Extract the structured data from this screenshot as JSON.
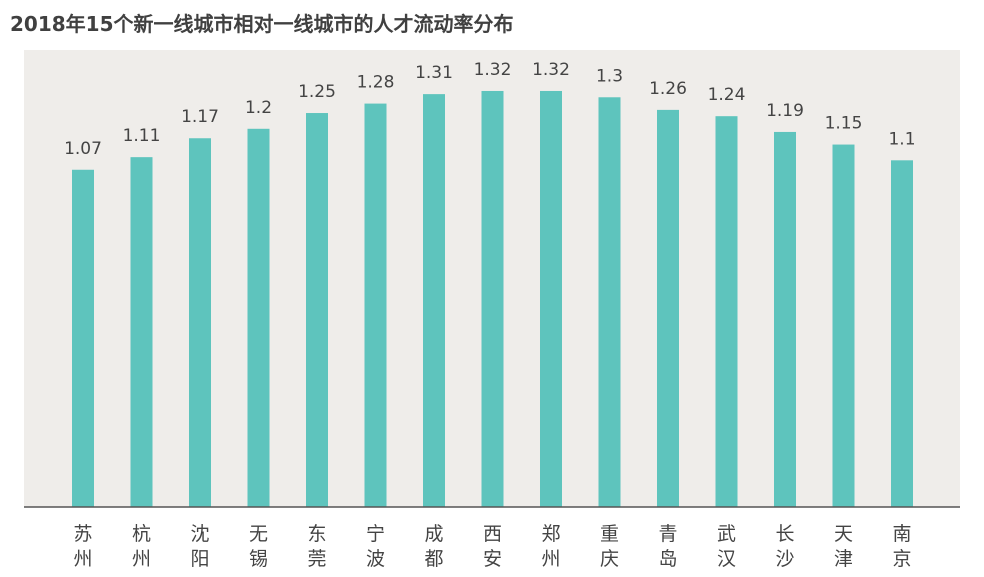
{
  "chart_data": {
    "type": "bar",
    "title": "2018年15个新一线城市相对一线城市的人才流动率分布",
    "xlabel": "",
    "ylabel": "",
    "ylim": [
      0,
      1.45
    ],
    "grid": false,
    "legend": "none",
    "categories": [
      "苏州",
      "杭州",
      "沈阳",
      "无锡",
      "东莞",
      "宁波",
      "成都",
      "西安",
      "郑州",
      "重庆",
      "青岛",
      "武汉",
      "长沙",
      "天津",
      "南京"
    ],
    "values": [
      1.07,
      1.11,
      1.17,
      1.2,
      1.25,
      1.28,
      1.31,
      1.32,
      1.32,
      1.3,
      1.26,
      1.24,
      1.19,
      1.15,
      1.1
    ],
    "data_labels": [
      "1.07",
      "1.11",
      "1.17",
      "1.2",
      "1.25",
      "1.28",
      "1.31",
      "1.32",
      "1.32",
      "1.3",
      "1.26",
      "1.24",
      "1.19",
      "1.15",
      "1.1"
    ],
    "colors": {
      "bar": "#5ec4bd",
      "plot_background": "#efedea",
      "axis": "#555555",
      "text": "#444444"
    }
  }
}
